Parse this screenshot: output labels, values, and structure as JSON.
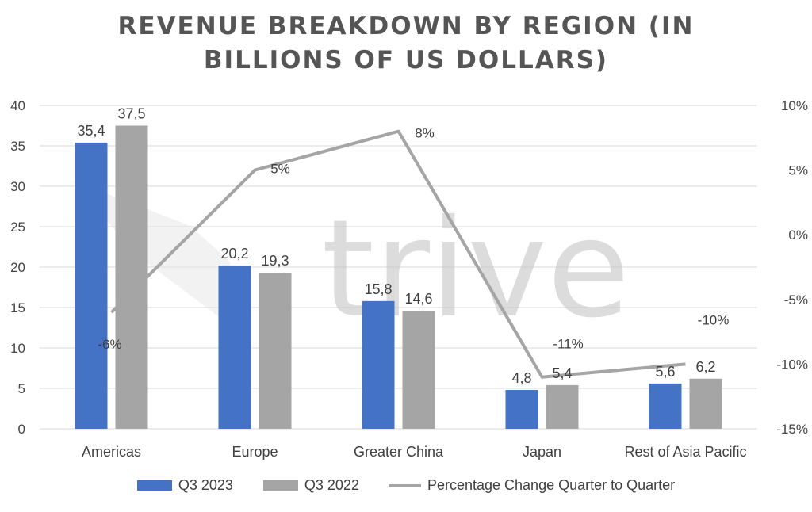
{
  "chart_data": {
    "type": "bar",
    "title_lines": [
      "REVENUE BREAKDOWN BY REGION (IN",
      "BILLIONS OF US DOLLARS)"
    ],
    "categories": [
      "Americas",
      "Europe",
      "Greater China",
      "Japan",
      "Rest of Asia Pacific"
    ],
    "series": [
      {
        "name": "Q3 2023",
        "kind": "bar",
        "color": "#4472C4",
        "values": [
          35.4,
          20.2,
          15.8,
          4.8,
          5.6
        ],
        "labels": [
          "35,4",
          "20,2",
          "15,8",
          "4,8",
          "5,6"
        ]
      },
      {
        "name": "Q3 2022",
        "kind": "bar",
        "color": "#A5A5A5",
        "values": [
          37.5,
          19.3,
          14.6,
          5.4,
          6.2
        ],
        "labels": [
          "37,5",
          "19,3",
          "14,6",
          "5,4",
          "6,2"
        ]
      }
    ],
    "line_series": {
      "name": "Percentage Change Quarter to Quarter",
      "color": "#A5A5A5",
      "axis": "secondary",
      "values": [
        -6,
        5,
        8,
        -11,
        -10
      ],
      "labels": [
        "-6%",
        "5%",
        "8%",
        "-11%",
        "-10%"
      ]
    },
    "y_primary": {
      "min": 0,
      "max": 40,
      "step": 5,
      "tick_labels": [
        "0",
        "5",
        "10",
        "15",
        "20",
        "25",
        "30",
        "35",
        "40"
      ]
    },
    "y_secondary": {
      "min": -15,
      "max": 10,
      "step": 5,
      "tick_labels": [
        "-15%",
        "-10%",
        "-5%",
        "0%",
        "5%",
        "10%"
      ]
    },
    "grid": true,
    "legend_position": "bottom",
    "watermark": "trive"
  }
}
